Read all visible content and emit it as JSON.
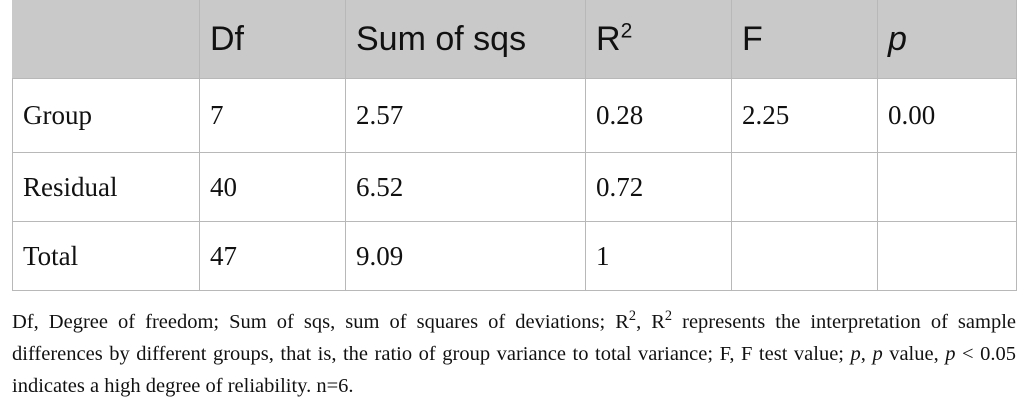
{
  "table": {
    "headers": {
      "c0": "",
      "c1": "Df",
      "c2": "Sum of sqs",
      "c3_base": "R",
      "c3_sup": "2",
      "c4": "F",
      "c5": "p"
    },
    "rows": [
      {
        "label": "Group",
        "df": "7",
        "sumsq": "2.57",
        "r2": "0.28",
        "f": "2.25",
        "p": "0.00"
      },
      {
        "label": "Residual",
        "df": "40",
        "sumsq": "6.52",
        "r2": "0.72",
        "f": "",
        "p": ""
      },
      {
        "label": "Total",
        "df": "47",
        "sumsq": "9.09",
        "r2": "1",
        "f": "",
        "p": ""
      }
    ]
  },
  "footnote": {
    "s1": "Df, Degree of freedom; Sum of sqs, sum of squares of deviations; R",
    "s1_sup": "2",
    "s2": ", R",
    "s2_sup": "2",
    "s3": " represents the interpretation of sample differences by different groups, that is, the ratio of group variance to total variance; F, F test value; ",
    "p1": "p",
    "s4": ", ",
    "p2": "p",
    "s5": " value, ",
    "p3": "p",
    "s6": " < 0.05 indicates a high degree of reliability. n=6."
  }
}
